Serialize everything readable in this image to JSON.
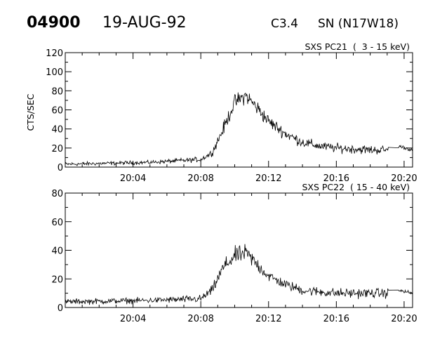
{
  "header": {
    "event_number": "04900",
    "date": "19-AUG-92",
    "goes_class": "C3.4",
    "location": "SN (N17W18)"
  },
  "chart_data": [
    {
      "type": "line",
      "title": "SXS PC21  (  3 - 15 keV)",
      "ylabel": "CTS/SEC",
      "xlabel": "",
      "xlim": [
        "20:00:00",
        "20:20:30"
      ],
      "ylim": [
        0,
        120
      ],
      "yticks": [
        0,
        20,
        40,
        60,
        80,
        100,
        120
      ],
      "xticks": [
        "20:04",
        "20:08",
        "20:12",
        "20:16",
        "20:20"
      ],
      "grid": false,
      "profile": {
        "x": [
          "20:00:00",
          "20:05:00",
          "20:08:00",
          "20:08:40",
          "20:09:20",
          "20:10:00",
          "20:10:40",
          "20:11:20",
          "20:12:00",
          "20:13:00",
          "20:14:00",
          "20:15:00",
          "20:16:00",
          "20:17:00",
          "20:18:00",
          "20:19:00",
          "20:19:40",
          "20:20:30"
        ],
        "y": [
          3,
          5,
          8,
          15,
          40,
          68,
          75,
          62,
          48,
          35,
          26,
          22,
          20,
          19,
          18,
          18,
          22,
          18
        ],
        "noise": [
          3,
          3,
          4,
          5,
          10,
          12,
          12,
          12,
          10,
          9,
          8,
          7,
          7,
          7,
          7,
          7,
          3,
          3
        ]
      }
    },
    {
      "type": "line",
      "title": "SXS PC22  ( 15 - 40 keV)",
      "ylabel": "",
      "xlabel": "",
      "xlim": [
        "20:00:00",
        "20:20:30"
      ],
      "ylim": [
        0,
        80
      ],
      "yticks": [
        0,
        20,
        40,
        60,
        80
      ],
      "xticks": [
        "20:04",
        "20:08",
        "20:12",
        "20:16",
        "20:20"
      ],
      "grid": false,
      "profile": {
        "x": [
          "20:00:00",
          "20:05:00",
          "20:08:00",
          "20:08:40",
          "20:09:20",
          "20:10:00",
          "20:10:40",
          "20:11:20",
          "20:12:00",
          "20:13:00",
          "20:14:00",
          "20:15:00",
          "20:16:00",
          "20:17:00",
          "20:18:00",
          "20:19:00",
          "20:19:40",
          "20:20:30"
        ],
        "y": [
          4,
          5,
          6,
          12,
          28,
          36,
          38,
          30,
          22,
          16,
          12,
          11,
          10,
          10,
          10,
          10,
          12,
          10
        ],
        "noise": [
          3,
          3,
          4,
          5,
          8,
          9,
          9,
          8,
          6,
          5,
          5,
          5,
          5,
          5,
          5,
          5,
          2,
          2
        ]
      }
    }
  ]
}
